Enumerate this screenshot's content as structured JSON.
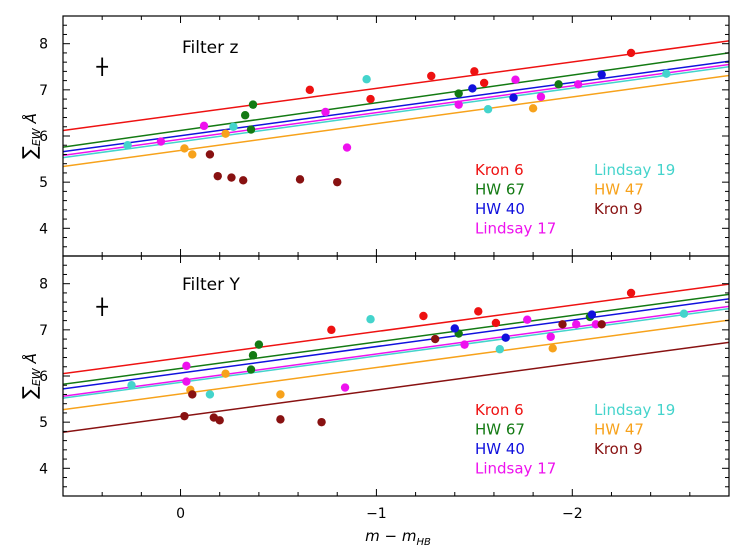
{
  "chart_data": {
    "type": "scatter",
    "xlabel": "m − m",
    "xlabel_sub": "HB",
    "ylabel": "∑",
    "ylabel_sub": "EW",
    "ylabel_unit": "Å",
    "xlim": [
      0.6,
      -2.8
    ],
    "ylim": [
      3.4,
      8.6
    ],
    "x_ticks": [
      0,
      -1,
      -2
    ],
    "x_tick_labels": [
      "0",
      "−1",
      "−2"
    ],
    "y_ticks": [
      4,
      5,
      6,
      7,
      8
    ],
    "y_tick_labels": [
      "4",
      "5",
      "6",
      "7",
      "8"
    ],
    "error_bar": {
      "x": 0.4,
      "y": 7.5,
      "xerr": 0.03,
      "yerr": 0.2,
      "color": "#000000"
    },
    "clusters": [
      {
        "key": "kron6",
        "name": "Kron 6",
        "color": "#ee1111"
      },
      {
        "key": "hw67",
        "name": "HW 67",
        "color": "#137a13"
      },
      {
        "key": "hw40",
        "name": "HW 40",
        "color": "#1111dd"
      },
      {
        "key": "lindsay17",
        "name": "Lindsay 17",
        "color": "#ee11ee"
      },
      {
        "key": "lindsay19",
        "name": "Lindsay 19",
        "color": "#44d4cc"
      },
      {
        "key": "hw47",
        "name": "HW 47",
        "color": "#f7a21b"
      },
      {
        "key": "kron9",
        "name": "Kron 9",
        "color": "#881111"
      }
    ],
    "panels": [
      {
        "title": "Filter z",
        "series": [
          {
            "key": "kron6",
            "points": [
              [
                -0.66,
                7.0
              ],
              [
                -0.97,
                6.8
              ],
              [
                -1.28,
                7.3
              ],
              [
                -1.5,
                7.4
              ],
              [
                -1.55,
                7.15
              ],
              [
                -2.3,
                7.8
              ]
            ],
            "line": [
              [
                0.6,
                6.12
              ],
              [
                -2.8,
                8.06
              ]
            ]
          },
          {
            "key": "hw67",
            "points": [
              [
                -0.33,
                6.45
              ],
              [
                -0.37,
                6.68
              ],
              [
                -0.36,
                6.14
              ],
              [
                -1.42,
                6.92
              ],
              [
                -1.93,
                7.12
              ]
            ],
            "line": [
              [
                0.6,
                5.76
              ],
              [
                -2.8,
                7.8
              ]
            ]
          },
          {
            "key": "hw40",
            "points": [
              [
                -1.49,
                7.03
              ],
              [
                -1.7,
                6.83
              ],
              [
                -2.15,
                7.33
              ]
            ],
            "line": [
              [
                0.6,
                5.66
              ],
              [
                -2.8,
                7.62
              ]
            ]
          },
          {
            "key": "lindsay17",
            "points": [
              [
                0.1,
                5.88
              ],
              [
                -0.12,
                6.22
              ],
              [
                -0.74,
                6.52
              ],
              [
                -0.85,
                5.75
              ],
              [
                -1.42,
                6.68
              ],
              [
                -1.71,
                7.22
              ],
              [
                -1.84,
                6.85
              ],
              [
                -2.03,
                7.12
              ]
            ],
            "line": [
              [
                0.6,
                5.58
              ],
              [
                -2.8,
                7.55
              ]
            ]
          },
          {
            "key": "lindsay19",
            "points": [
              [
                0.27,
                5.8
              ],
              [
                -0.27,
                6.2
              ],
              [
                -0.95,
                7.23
              ],
              [
                -1.57,
                6.58
              ],
              [
                -2.48,
                7.35
              ]
            ],
            "line": [
              [
                0.6,
                5.53
              ],
              [
                -2.8,
                7.5
              ]
            ]
          },
          {
            "key": "hw47",
            "points": [
              [
                -0.02,
                5.73
              ],
              [
                -0.06,
                5.6
              ],
              [
                -0.23,
                6.05
              ],
              [
                -1.8,
                6.6
              ]
            ],
            "line": [
              [
                0.6,
                5.34
              ],
              [
                -2.8,
                7.31
              ]
            ]
          },
          {
            "key": "kron9",
            "points": [
              [
                -0.15,
                5.6
              ],
              [
                -0.19,
                5.13
              ],
              [
                -0.26,
                5.1
              ],
              [
                -0.32,
                5.04
              ],
              [
                -0.61,
                5.06
              ],
              [
                -0.8,
                5.0
              ]
            ],
            "line": null
          }
        ]
      },
      {
        "title": "Filter Y",
        "series": [
          {
            "key": "kron6",
            "points": [
              [
                -0.77,
                7.0
              ],
              [
                -1.24,
                7.3
              ],
              [
                -1.52,
                7.4
              ],
              [
                -1.61,
                7.15
              ],
              [
                -2.3,
                7.8
              ]
            ],
            "line": [
              [
                0.6,
                6.05
              ],
              [
                -2.8,
                7.99
              ]
            ]
          },
          {
            "key": "hw67",
            "points": [
              [
                -0.37,
                6.45
              ],
              [
                -0.4,
                6.68
              ],
              [
                -0.36,
                6.14
              ],
              [
                -1.42,
                6.92
              ],
              [
                -2.09,
                7.28
              ]
            ],
            "line": [
              [
                0.6,
                5.82
              ],
              [
                -2.8,
                7.77
              ]
            ]
          },
          {
            "key": "hw40",
            "points": [
              [
                -1.4,
                7.03
              ],
              [
                -1.66,
                6.83
              ],
              [
                -2.1,
                7.33
              ]
            ],
            "line": [
              [
                0.6,
                5.72
              ],
              [
                -2.8,
                7.67
              ]
            ]
          },
          {
            "key": "lindsay17",
            "points": [
              [
                -0.03,
                6.22
              ],
              [
                -0.03,
                5.88
              ],
              [
                -0.84,
                5.75
              ],
              [
                -1.45,
                6.68
              ],
              [
                -1.77,
                7.22
              ],
              [
                -1.89,
                6.85
              ],
              [
                -2.02,
                7.12
              ],
              [
                -2.12,
                7.12
              ]
            ],
            "line": [
              [
                0.6,
                5.56
              ],
              [
                -2.8,
                7.51
              ]
            ]
          },
          {
            "key": "lindsay19",
            "points": [
              [
                0.25,
                5.8
              ],
              [
                -0.15,
                5.6
              ],
              [
                -0.97,
                7.23
              ],
              [
                -1.63,
                6.58
              ],
              [
                -2.57,
                7.35
              ]
            ],
            "line": [
              [
                0.6,
                5.52
              ],
              [
                -2.8,
                7.46
              ]
            ]
          },
          {
            "key": "hw47",
            "points": [
              [
                -0.05,
                5.7
              ],
              [
                -0.23,
                6.05
              ],
              [
                -0.51,
                5.6
              ],
              [
                -1.9,
                6.6
              ]
            ],
            "line": [
              [
                0.6,
                5.27
              ],
              [
                -2.8,
                7.21
              ]
            ]
          },
          {
            "key": "kron9",
            "points": [
              [
                -0.02,
                5.13
              ],
              [
                -0.06,
                5.6
              ],
              [
                -0.17,
                5.1
              ],
              [
                -0.2,
                5.04
              ],
              [
                -0.51,
                5.06
              ],
              [
                -0.72,
                5.0
              ],
              [
                -1.3,
                6.8
              ],
              [
                -1.95,
                7.12
              ],
              [
                -2.15,
                7.12
              ]
            ],
            "line": [
              [
                0.6,
                4.78
              ],
              [
                -2.8,
                6.73
              ]
            ]
          }
        ]
      }
    ]
  }
}
